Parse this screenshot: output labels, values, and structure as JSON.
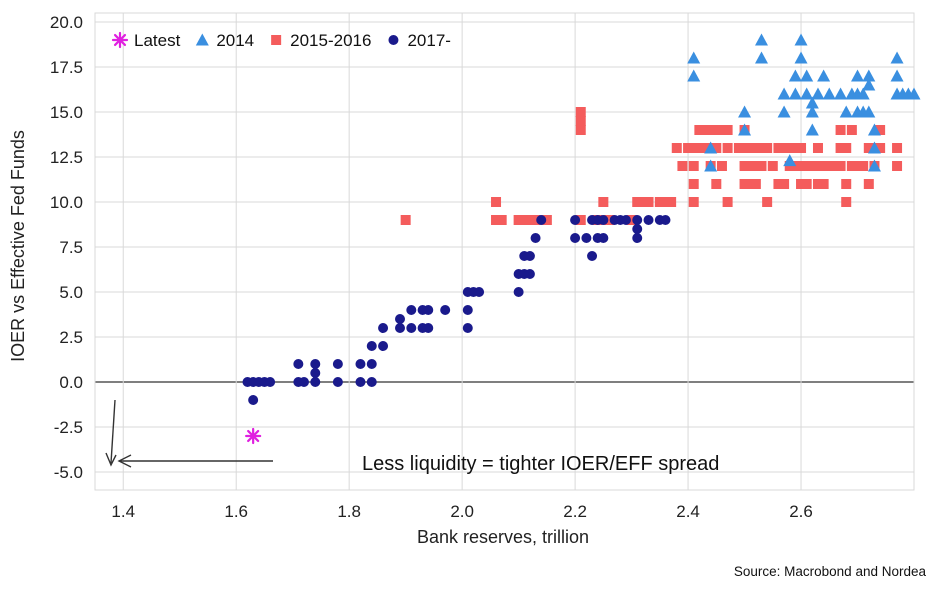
{
  "chart_data": {
    "type": "scatter",
    "title": "",
    "xlabel": "Bank reserves, trillion",
    "ylabel": "IOER vs Effective Fed Funds",
    "xlim": [
      1.35,
      2.8
    ],
    "ylim": [
      -6.0,
      20.5
    ],
    "x_ticks": [
      "1.4",
      "1.6",
      "1.8",
      "2.0",
      "2.2",
      "2.4",
      "2.6"
    ],
    "y_ticks": [
      "20.0",
      "17.5",
      "15.0",
      "12.5",
      "10.0",
      "7.5",
      "5.0",
      "2.5",
      "0.0",
      "-2.5",
      "-5.0"
    ],
    "grid": true,
    "legend_position": "top-left",
    "annotation": "Less liquidity = tighter IOER/EFF spread",
    "source": "Source: Macrobond and Nordea",
    "colors": {
      "latest": "#e020e0",
      "y2014": "#3a8fe0",
      "y2015_2016": "#f45c5c",
      "y2017": "#1a1a8c",
      "grid": "#d9d9d9",
      "zero_line": "#555555",
      "arrow": "#333333"
    },
    "series": [
      {
        "name": "Latest",
        "marker": "asterisk",
        "points": [
          [
            1.63,
            -3.0
          ]
        ]
      },
      {
        "name": "2014",
        "marker": "triangle",
        "points": [
          [
            2.41,
            18.0
          ],
          [
            2.41,
            17.0
          ],
          [
            2.44,
            13.0
          ],
          [
            2.44,
            12.0
          ],
          [
            2.5,
            15.0
          ],
          [
            2.5,
            14.0
          ],
          [
            2.53,
            19.0
          ],
          [
            2.53,
            18.0
          ],
          [
            2.57,
            16.0
          ],
          [
            2.57,
            15.0
          ],
          [
            2.58,
            12.3
          ],
          [
            2.59,
            17.0
          ],
          [
            2.59,
            16.0
          ],
          [
            2.6,
            19.0
          ],
          [
            2.6,
            18.0
          ],
          [
            2.61,
            17.0
          ],
          [
            2.61,
            16.0
          ],
          [
            2.62,
            15.0
          ],
          [
            2.62,
            14.0
          ],
          [
            2.62,
            15.5
          ],
          [
            2.63,
            16.0
          ],
          [
            2.64,
            17.0
          ],
          [
            2.65,
            16.0
          ],
          [
            2.67,
            16.0
          ],
          [
            2.68,
            15.0
          ],
          [
            2.69,
            16.0
          ],
          [
            2.7,
            17.0
          ],
          [
            2.7,
            16.0
          ],
          [
            2.7,
            15.0
          ],
          [
            2.71,
            16.0
          ],
          [
            2.71,
            15.0
          ],
          [
            2.72,
            17.0
          ],
          [
            2.72,
            16.5
          ],
          [
            2.72,
            15.0
          ],
          [
            2.73,
            14.0
          ],
          [
            2.73,
            13.0
          ],
          [
            2.73,
            12.0
          ],
          [
            2.77,
            18.0
          ],
          [
            2.77,
            17.0
          ],
          [
            2.77,
            16.0
          ],
          [
            2.78,
            16.0
          ],
          [
            2.79,
            16.0
          ],
          [
            2.8,
            16.0
          ]
        ]
      },
      {
        "name": "2015-2016",
        "marker": "square",
        "points": [
          [
            1.9,
            9.0
          ],
          [
            2.06,
            10.0
          ],
          [
            2.06,
            9.0
          ],
          [
            2.07,
            9.0
          ],
          [
            2.1,
            9.0
          ],
          [
            2.11,
            9.0
          ],
          [
            2.12,
            9.0
          ],
          [
            2.13,
            9.0
          ],
          [
            2.15,
            9.0
          ],
          [
            2.21,
            15.0
          ],
          [
            2.21,
            14.5
          ],
          [
            2.21,
            14.0
          ],
          [
            2.21,
            9.0
          ],
          [
            2.24,
            9.0
          ],
          [
            2.25,
            10.0
          ],
          [
            2.26,
            9.0
          ],
          [
            2.3,
            9.0
          ],
          [
            2.31,
            10.0
          ],
          [
            2.32,
            10.0
          ],
          [
            2.33,
            10.0
          ],
          [
            2.35,
            10.0
          ],
          [
            2.36,
            10.0
          ],
          [
            2.37,
            10.0
          ],
          [
            2.38,
            13.0
          ],
          [
            2.39,
            12.0
          ],
          [
            2.4,
            13.0
          ],
          [
            2.41,
            13.0
          ],
          [
            2.41,
            12.0
          ],
          [
            2.41,
            11.0
          ],
          [
            2.41,
            10.0
          ],
          [
            2.42,
            14.0
          ],
          [
            2.42,
            13.0
          ],
          [
            2.43,
            14.0
          ],
          [
            2.43,
            13.0
          ],
          [
            2.44,
            14.0
          ],
          [
            2.44,
            12.0
          ],
          [
            2.45,
            14.0
          ],
          [
            2.45,
            13.0
          ],
          [
            2.45,
            11.0
          ],
          [
            2.46,
            14.0
          ],
          [
            2.46,
            12.0
          ],
          [
            2.47,
            14.0
          ],
          [
            2.47,
            13.0
          ],
          [
            2.47,
            10.0
          ],
          [
            2.49,
            13.0
          ],
          [
            2.5,
            14.0
          ],
          [
            2.5,
            13.0
          ],
          [
            2.5,
            12.0
          ],
          [
            2.5,
            11.0
          ],
          [
            2.51,
            13.0
          ],
          [
            2.51,
            12.0
          ],
          [
            2.51,
            11.0
          ],
          [
            2.52,
            13.0
          ],
          [
            2.52,
            12.0
          ],
          [
            2.52,
            11.0
          ],
          [
            2.53,
            13.0
          ],
          [
            2.53,
            12.0
          ],
          [
            2.54,
            13.0
          ],
          [
            2.54,
            10.0
          ],
          [
            2.55,
            12.0
          ],
          [
            2.56,
            13.0
          ],
          [
            2.56,
            11.0
          ],
          [
            2.57,
            13.0
          ],
          [
            2.57,
            11.0
          ],
          [
            2.58,
            13.0
          ],
          [
            2.58,
            12.0
          ],
          [
            2.59,
            13.0
          ],
          [
            2.59,
            12.0
          ],
          [
            2.6,
            13.0
          ],
          [
            2.6,
            12.0
          ],
          [
            2.6,
            11.0
          ],
          [
            2.61,
            12.0
          ],
          [
            2.61,
            11.0
          ],
          [
            2.62,
            12.0
          ],
          [
            2.63,
            13.0
          ],
          [
            2.63,
            12.0
          ],
          [
            2.63,
            11.0
          ],
          [
            2.64,
            12.0
          ],
          [
            2.64,
            11.0
          ],
          [
            2.65,
            12.0
          ],
          [
            2.66,
            12.0
          ],
          [
            2.67,
            14.0
          ],
          [
            2.67,
            13.0
          ],
          [
            2.67,
            12.0
          ],
          [
            2.68,
            13.0
          ],
          [
            2.68,
            11.0
          ],
          [
            2.68,
            10.0
          ],
          [
            2.69,
            14.0
          ],
          [
            2.69,
            12.0
          ],
          [
            2.7,
            12.0
          ],
          [
            2.71,
            12.0
          ],
          [
            2.72,
            11.0
          ],
          [
            2.72,
            13.0
          ],
          [
            2.73,
            12.0
          ],
          [
            2.74,
            14.0
          ],
          [
            2.74,
            13.0
          ],
          [
            2.77,
            13.0
          ],
          [
            2.77,
            12.0
          ]
        ]
      },
      {
        "name": "2017-",
        "marker": "circle",
        "points": [
          [
            1.62,
            0.0
          ],
          [
            1.63,
            0.0
          ],
          [
            1.63,
            -1.0
          ],
          [
            1.64,
            0.0
          ],
          [
            1.65,
            0.0
          ],
          [
            1.66,
            0.0
          ],
          [
            1.71,
            1.0
          ],
          [
            1.71,
            0.0
          ],
          [
            1.72,
            0.0
          ],
          [
            1.74,
            1.0
          ],
          [
            1.74,
            0.5
          ],
          [
            1.74,
            0.0
          ],
          [
            1.78,
            1.0
          ],
          [
            1.78,
            0.0
          ],
          [
            1.82,
            1.0
          ],
          [
            1.82,
            0.0
          ],
          [
            1.84,
            2.0
          ],
          [
            1.84,
            1.0
          ],
          [
            1.84,
            0.0
          ],
          [
            1.86,
            3.0
          ],
          [
            1.86,
            2.0
          ],
          [
            1.89,
            3.5
          ],
          [
            1.89,
            3.0
          ],
          [
            1.91,
            4.0
          ],
          [
            1.91,
            3.0
          ],
          [
            1.93,
            4.0
          ],
          [
            1.93,
            3.0
          ],
          [
            1.94,
            4.0
          ],
          [
            1.94,
            3.0
          ],
          [
            1.97,
            4.0
          ],
          [
            2.01,
            5.0
          ],
          [
            2.01,
            4.0
          ],
          [
            2.01,
            3.0
          ],
          [
            2.02,
            5.0
          ],
          [
            2.03,
            5.0
          ],
          [
            2.1,
            6.0
          ],
          [
            2.1,
            5.0
          ],
          [
            2.11,
            7.0
          ],
          [
            2.11,
            6.0
          ],
          [
            2.12,
            7.0
          ],
          [
            2.12,
            6.0
          ],
          [
            2.13,
            8.0
          ],
          [
            2.14,
            9.0
          ],
          [
            2.2,
            9.0
          ],
          [
            2.2,
            8.0
          ],
          [
            2.22,
            8.0
          ],
          [
            2.23,
            9.0
          ],
          [
            2.23,
            7.0
          ],
          [
            2.24,
            9.0
          ],
          [
            2.24,
            8.0
          ],
          [
            2.25,
            9.0
          ],
          [
            2.25,
            8.0
          ],
          [
            2.27,
            9.0
          ],
          [
            2.28,
            9.0
          ],
          [
            2.29,
            9.0
          ],
          [
            2.31,
            9.0
          ],
          [
            2.31,
            8.5
          ],
          [
            2.31,
            8.0
          ],
          [
            2.33,
            9.0
          ],
          [
            2.35,
            9.0
          ],
          [
            2.36,
            9.0
          ]
        ]
      }
    ]
  }
}
